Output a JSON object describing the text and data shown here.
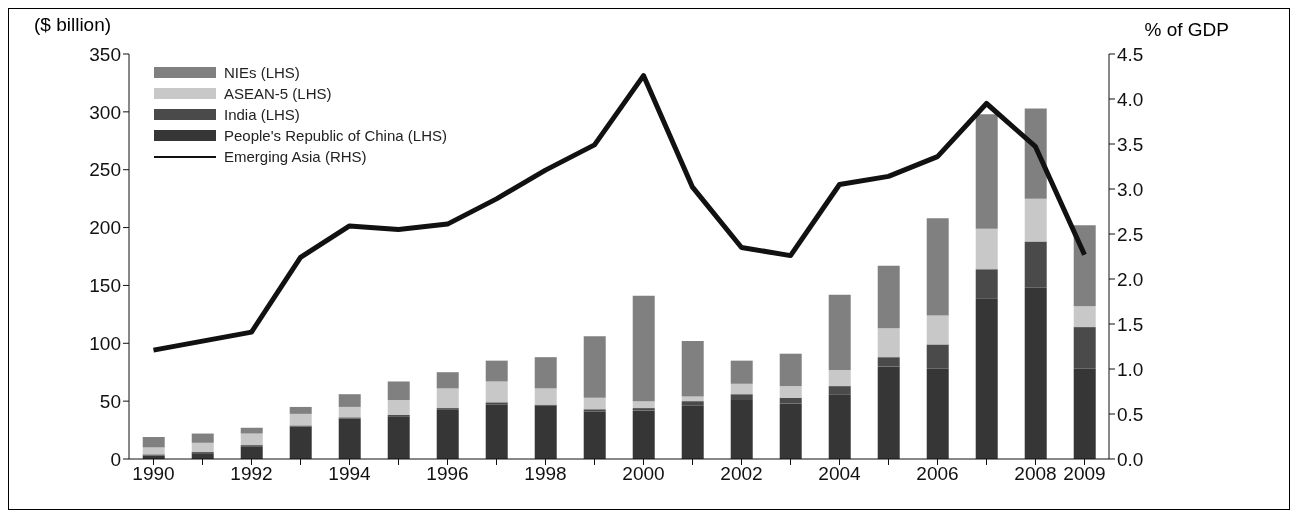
{
  "chart_data": {
    "type": "bar",
    "stacked": true,
    "ylabel": "($ billion)",
    "y2label": "% of GDP",
    "categories": [
      "1990",
      null,
      "1992",
      null,
      "1994",
      null,
      "1996",
      null,
      "1998",
      null,
      "2000",
      null,
      "2002",
      null,
      "2004",
      null,
      "2006",
      null,
      "2008",
      "2009"
    ],
    "series": [
      {
        "name": "People's Republic of China (LHS)",
        "color": "#363636",
        "values": [
          3,
          5,
          11,
          28,
          35,
          37,
          43,
          47,
          46,
          41,
          42,
          46,
          51,
          48,
          56,
          80,
          78,
          139,
          148,
          78
        ]
      },
      {
        "name": "India (LHS)",
        "color": "#4a4a4a",
        "values": [
          1,
          1,
          1,
          1,
          1,
          1,
          1,
          2,
          1,
          2,
          2,
          4,
          5,
          5,
          7,
          8,
          21,
          25,
          40,
          36
        ]
      },
      {
        "name": "ASEAN-5 (LHS)",
        "color": "#c8c8c8",
        "values": [
          6,
          8,
          10,
          10,
          9,
          13,
          17,
          18,
          14,
          10,
          6,
          4,
          9,
          10,
          14,
          25,
          25,
          35,
          37,
          18
        ]
      },
      {
        "name": "NIEs (LHS)",
        "color": "#808080",
        "values": [
          9,
          8,
          5,
          6,
          11,
          16,
          14,
          18,
          27,
          53,
          91,
          48,
          20,
          28,
          65,
          54,
          84,
          99,
          78,
          70
        ]
      },
      {
        "name": "Emerging Asia (RHS)",
        "type": "line",
        "axis": "y2",
        "color": "#111111",
        "values": [
          1.21,
          1.31,
          1.41,
          2.24,
          2.59,
          2.55,
          2.61,
          2.89,
          3.21,
          3.49,
          4.26,
          3.02,
          2.35,
          2.26,
          3.05,
          3.14,
          3.36,
          3.95,
          3.47,
          2.27
        ]
      }
    ],
    "ylim": [
      0,
      350
    ],
    "yticks": [
      0,
      50,
      100,
      150,
      200,
      250,
      300,
      350
    ],
    "y2lim": [
      0,
      4.5
    ],
    "y2ticks": [
      {
        "value": 0,
        "label": "0.0"
      },
      {
        "value": 0.5,
        "label": "0.5"
      },
      {
        "value": 1,
        "label": "1.0"
      },
      {
        "value": 1.5,
        "label": "1.5"
      },
      {
        "value": 2,
        "label": "2.0"
      },
      {
        "value": 2.5,
        "label": "2.5"
      },
      {
        "value": 3,
        "label": "3.0"
      },
      {
        "value": 3.5,
        "label": "3.5"
      },
      {
        "value": 4,
        "label": "4.0"
      },
      {
        "value": 4.5,
        "label": "4.5"
      }
    ],
    "legend": "top left",
    "marker": "none",
    "line_style": "solid"
  }
}
